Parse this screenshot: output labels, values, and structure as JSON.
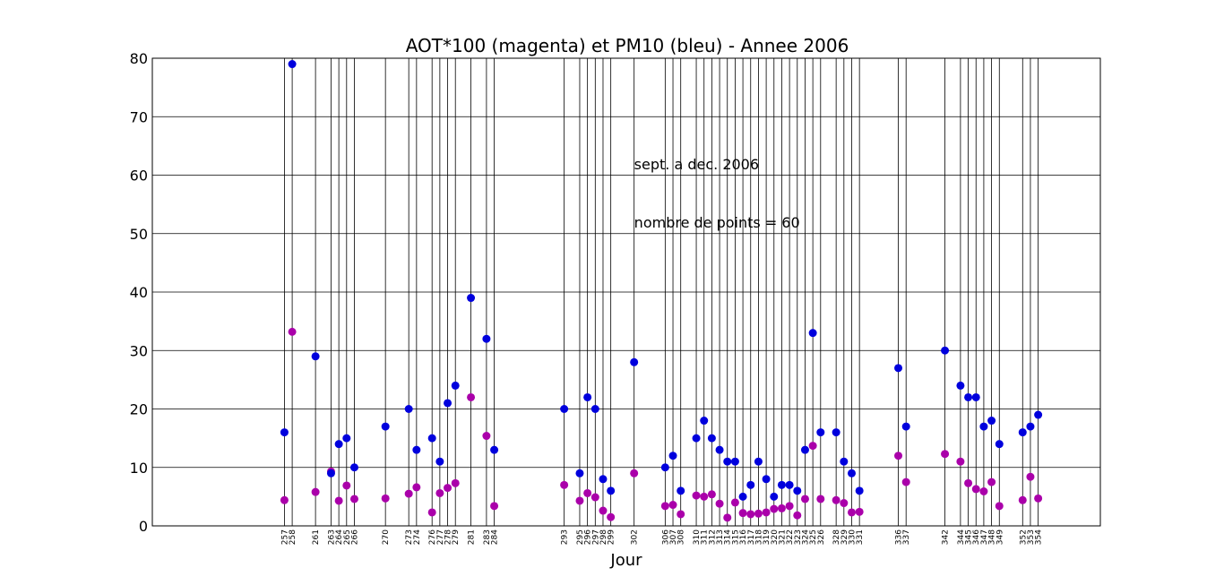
{
  "chart_data": {
    "type": "scatter",
    "title": "AOT*100 (magenta) et PM10 (bleu) - Annee 2006",
    "xlabel": "Jour",
    "ylabel": "",
    "xlim": [
      240,
      362
    ],
    "ylim": [
      0,
      80
    ],
    "yticks": [
      0,
      10,
      20,
      30,
      40,
      50,
      60,
      70,
      80
    ],
    "grid": true,
    "annotations": [
      {
        "text": "sept. a dec. 2006",
        "x": 302,
        "y": 61
      },
      {
        "text": "nombre de points = 60",
        "x": 302,
        "y": 51
      }
    ],
    "x": [
      257,
      258,
      261,
      263,
      264,
      265,
      266,
      270,
      273,
      274,
      276,
      277,
      278,
      279,
      281,
      283,
      284,
      293,
      295,
      296,
      297,
      298,
      299,
      302,
      306,
      307,
      308,
      310,
      311,
      312,
      313,
      314,
      315,
      316,
      317,
      318,
      319,
      320,
      321,
      322,
      323,
      324,
      325,
      326,
      328,
      329,
      330,
      331,
      336,
      337,
      342,
      344,
      345,
      346,
      347,
      348,
      349,
      352,
      353,
      354
    ],
    "series": [
      {
        "name": "PM10",
        "color": "#0000dd",
        "values": [
          16,
          79,
          29,
          9,
          14,
          15,
          10,
          17,
          20,
          13,
          15,
          11,
          21,
          24,
          39,
          32,
          13,
          20,
          9,
          22,
          20,
          8,
          6,
          28,
          10,
          12,
          6,
          15,
          18,
          15,
          13,
          11,
          11,
          5,
          7,
          11,
          8,
          5,
          7,
          7,
          6,
          13,
          33,
          16,
          16,
          11,
          9,
          6,
          27,
          17,
          30,
          24,
          22,
          22,
          17,
          18,
          14,
          16,
          17,
          19
        ]
      },
      {
        "name": "AOT*100",
        "color": "#aa00aa",
        "values": [
          4.4,
          33.2,
          5.8,
          9.3,
          4.3,
          6.9,
          4.6,
          4.7,
          5.5,
          6.6,
          2.3,
          5.6,
          6.5,
          7.3,
          22,
          15.4,
          3.4,
          7,
          4.3,
          5.6,
          4.9,
          2.6,
          1.5,
          9,
          3.4,
          3.6,
          2,
          5.2,
          5,
          5.4,
          3.8,
          1.4,
          4,
          2.2,
          2,
          2.1,
          2.3,
          2.9,
          3,
          3.4,
          1.8,
          4.6,
          13.7,
          4.6,
          4.4,
          3.9,
          2.3,
          2.4,
          12,
          7.5,
          12.3,
          11,
          7.3,
          6.3,
          5.9,
          7.5,
          3.4,
          4.4,
          8.4,
          4.7
        ]
      }
    ]
  }
}
